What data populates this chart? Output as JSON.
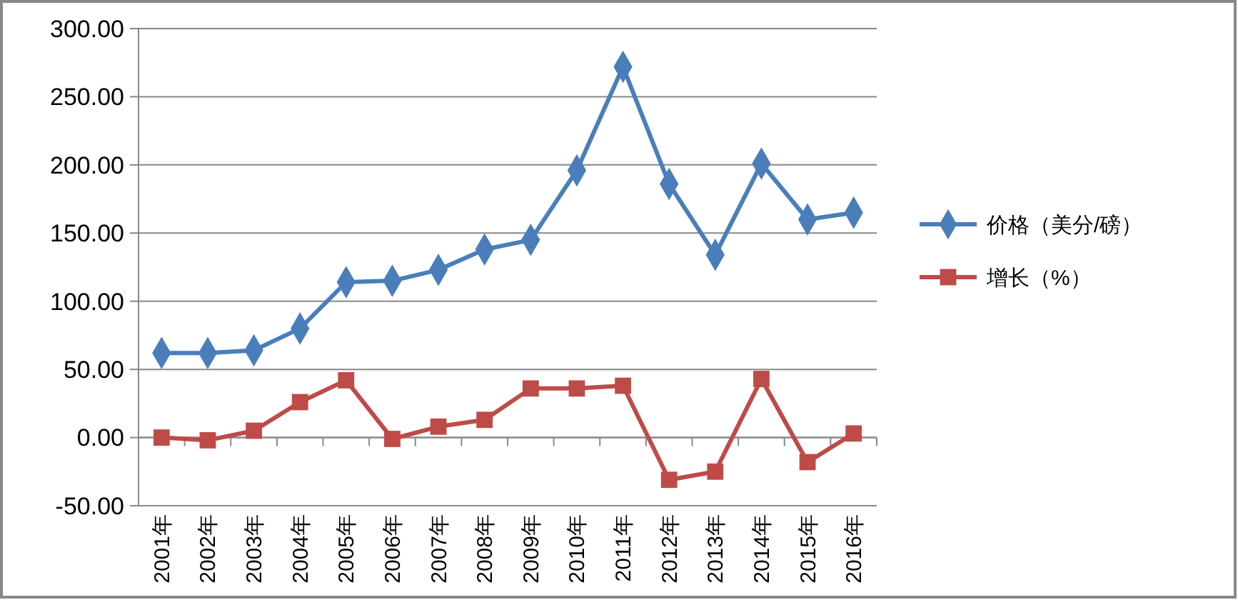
{
  "chart_data": {
    "type": "line",
    "categories": [
      "2001年",
      "2002年",
      "2003年",
      "2004年",
      "2005年",
      "2006年",
      "2007年",
      "2008年",
      "2009年",
      "2010年",
      "2011年",
      "2012年",
      "2013年",
      "2014年",
      "2015年",
      "2016年"
    ],
    "series": [
      {
        "name": "价格（美分/磅）",
        "color": "#4a7ebb",
        "marker": "diamond",
        "values": [
          62,
          62,
          64,
          80,
          114,
          115,
          123,
          138,
          145,
          196,
          272,
          186,
          134,
          201,
          160,
          165
        ]
      },
      {
        "name": "增长（%）",
        "color": "#be4b48",
        "marker": "square",
        "values": [
          0,
          -2,
          5,
          26,
          42,
          -1,
          8,
          13,
          36,
          36,
          38,
          -31,
          -25,
          43,
          -18,
          3
        ]
      }
    ],
    "ylim": [
      -50,
      300
    ],
    "yticks": [
      {
        "value": -50,
        "label": "-50.00"
      },
      {
        "value": 0,
        "label": "0.00"
      },
      {
        "value": 50,
        "label": "50.00"
      },
      {
        "value": 100,
        "label": "100.00"
      },
      {
        "value": 150,
        "label": "150.00"
      },
      {
        "value": 200,
        "label": "200.00"
      },
      {
        "value": 250,
        "label": "250.00"
      },
      {
        "value": 300,
        "label": "300.00"
      }
    ],
    "grid": "y",
    "legend": "right",
    "line_style": "solid"
  }
}
